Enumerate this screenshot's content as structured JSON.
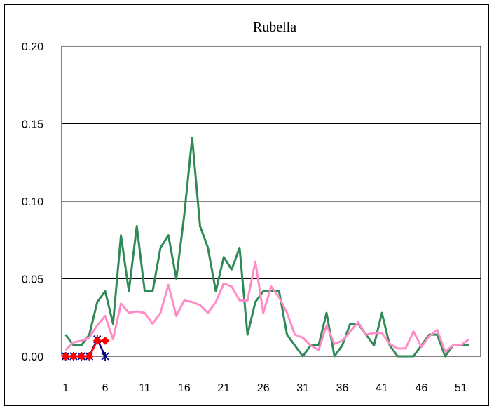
{
  "chart_data": {
    "type": "line",
    "title": "Rubella",
    "xlabel": "",
    "ylabel": "",
    "xlim": [
      1,
      53
    ],
    "ylim": [
      0,
      0.2
    ],
    "y_ticks": [
      "0.00",
      "0.05",
      "0.10",
      "0.15",
      "0.20"
    ],
    "y_tick_values": [
      0,
      0.05,
      0.1,
      0.15,
      0.2
    ],
    "x_ticks": [
      "1",
      "6",
      "11",
      "16",
      "21",
      "26",
      "31",
      "36",
      "41",
      "46",
      "51"
    ],
    "x_tick_values": [
      1,
      6,
      11,
      16,
      21,
      26,
      31,
      36,
      41,
      46,
      51
    ],
    "grid": true,
    "legend": "none",
    "series": [
      {
        "color": "#2e8b57",
        "marker": "none",
        "x": [
          1,
          2,
          3,
          4,
          5,
          6,
          7,
          8,
          9,
          10,
          11,
          12,
          13,
          14,
          15,
          16,
          17,
          18,
          19,
          20,
          21,
          22,
          23,
          24,
          25,
          26,
          27,
          28,
          29,
          30,
          31,
          32,
          33,
          34,
          35,
          36,
          37,
          38,
          39,
          40,
          41,
          42,
          43,
          44,
          45,
          46,
          47,
          48,
          49,
          50,
          51,
          52
        ],
        "values": [
          0.014,
          0.007,
          0.007,
          0.014,
          0.035,
          0.042,
          0.021,
          0.078,
          0.042,
          0.084,
          0.042,
          0.042,
          0.07,
          0.078,
          0.05,
          0.091,
          0.141,
          0.084,
          0.07,
          0.042,
          0.064,
          0.056,
          0.07,
          0.014,
          0.035,
          0.042,
          0.042,
          0.042,
          0.014,
          0.007,
          0.0,
          0.007,
          0.007,
          0.028,
          0.0,
          0.007,
          0.021,
          0.021,
          0.014,
          0.007,
          0.028,
          0.007,
          0.0,
          0.0,
          0.0,
          0.007,
          0.014,
          0.014,
          0.0,
          0.007,
          0.007,
          0.007
        ]
      },
      {
        "color": "#ff8cc6",
        "marker": "none",
        "x": [
          1,
          2,
          3,
          4,
          5,
          6,
          7,
          8,
          9,
          10,
          11,
          12,
          13,
          14,
          15,
          16,
          17,
          18,
          19,
          20,
          21,
          22,
          23,
          24,
          25,
          26,
          27,
          28,
          29,
          30,
          31,
          32,
          33,
          34,
          35,
          36,
          37,
          38,
          39,
          40,
          41,
          42,
          43,
          44,
          45,
          46,
          47,
          48,
          49,
          50,
          51,
          52
        ],
        "values": [
          0.004,
          0.009,
          0.01,
          0.012,
          0.02,
          0.026,
          0.011,
          0.034,
          0.028,
          0.029,
          0.028,
          0.021,
          0.028,
          0.046,
          0.026,
          0.036,
          0.035,
          0.033,
          0.028,
          0.035,
          0.047,
          0.045,
          0.036,
          0.036,
          0.061,
          0.028,
          0.045,
          0.038,
          0.028,
          0.014,
          0.012,
          0.007,
          0.004,
          0.02,
          0.008,
          0.01,
          0.016,
          0.022,
          0.014,
          0.015,
          0.015,
          0.008,
          0.005,
          0.005,
          0.016,
          0.006,
          0.013,
          0.017,
          0.003,
          0.007,
          0.007,
          0.011
        ]
      },
      {
        "color": "#000080",
        "marker": "asterisk",
        "x": [
          1,
          2,
          3,
          4,
          5,
          6
        ],
        "values": [
          0.0,
          0.0,
          0.0,
          0.0,
          0.011,
          0.0
        ]
      },
      {
        "color": "#ff0000",
        "marker": "diamond",
        "x": [
          1,
          2,
          3,
          4,
          5,
          6
        ],
        "values": [
          0.0,
          0.0,
          0.0,
          0.0,
          0.01,
          0.01
        ]
      }
    ]
  }
}
